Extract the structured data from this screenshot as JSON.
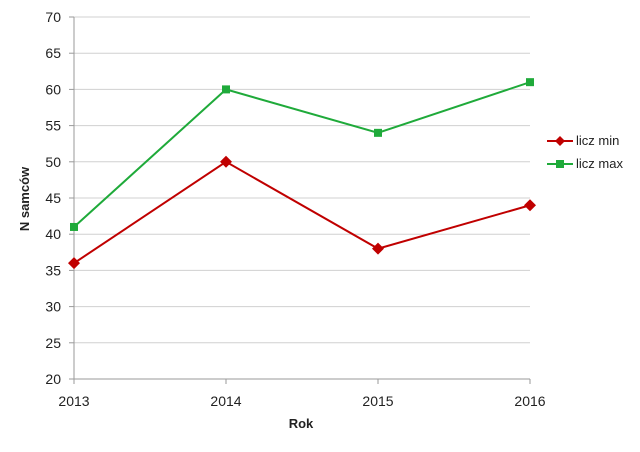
{
  "chart_data": {
    "type": "line",
    "categories": [
      "2013",
      "2014",
      "2015",
      "2016"
    ],
    "series": [
      {
        "name": "licz min",
        "values": [
          36,
          50,
          38,
          44
        ],
        "color": "#c00000",
        "marker": "diamond"
      },
      {
        "name": "licz max",
        "values": [
          41,
          60,
          54,
          61
        ],
        "color": "#1faa3a",
        "marker": "square"
      }
    ],
    "title": "",
    "xlabel": "Rok",
    "ylabel": "N samców",
    "ylim": [
      20,
      70
    ],
    "yticks": [
      "20",
      "25",
      "30",
      "35",
      "40",
      "45",
      "50",
      "55",
      "60",
      "65",
      "70"
    ],
    "grid": true,
    "legend_position": "right"
  }
}
